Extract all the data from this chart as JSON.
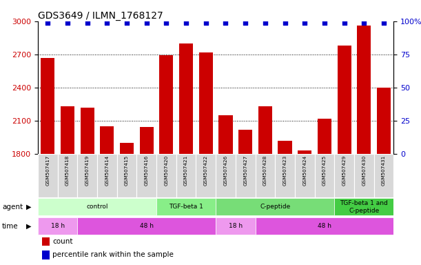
{
  "title": "GDS3649 / ILMN_1768127",
  "samples": [
    "GSM507417",
    "GSM507418",
    "GSM507419",
    "GSM507414",
    "GSM507415",
    "GSM507416",
    "GSM507420",
    "GSM507421",
    "GSM507422",
    "GSM507426",
    "GSM507427",
    "GSM507428",
    "GSM507423",
    "GSM507424",
    "GSM507425",
    "GSM507429",
    "GSM507430",
    "GSM507431"
  ],
  "counts": [
    2670,
    2230,
    2220,
    2050,
    1900,
    2040,
    2690,
    2800,
    2720,
    2150,
    2020,
    2230,
    1920,
    1830,
    2120,
    2780,
    2960,
    2400
  ],
  "percentiles": [
    99,
    99,
    99,
    99,
    99,
    99,
    99,
    99,
    99,
    99,
    99,
    99,
    99,
    99,
    99,
    99,
    99,
    99
  ],
  "bar_color": "#cc0000",
  "dot_color": "#0000cc",
  "ylim_left": [
    1800,
    3000
  ],
  "ylim_right": [
    0,
    100
  ],
  "yticks_left": [
    1800,
    2100,
    2400,
    2700,
    3000
  ],
  "yticks_right": [
    0,
    25,
    50,
    75,
    100
  ],
  "ytick_right_labels": [
    "0",
    "25",
    "50",
    "75",
    "100%"
  ],
  "gridlines": [
    2100,
    2400,
    2700
  ],
  "agent_groups": [
    {
      "label": "control",
      "start": 0,
      "end": 6,
      "color": "#ccffcc"
    },
    {
      "label": "TGF-beta 1",
      "start": 6,
      "end": 9,
      "color": "#88ee88"
    },
    {
      "label": "C-peptide",
      "start": 9,
      "end": 15,
      "color": "#77dd77"
    },
    {
      "label": "TGF-beta 1 and\nC-peptide",
      "start": 15,
      "end": 18,
      "color": "#44cc44"
    }
  ],
  "time_groups": [
    {
      "label": "18 h",
      "start": 0,
      "end": 2,
      "color": "#ee99ee"
    },
    {
      "label": "48 h",
      "start": 2,
      "end": 9,
      "color": "#dd55dd"
    },
    {
      "label": "18 h",
      "start": 9,
      "end": 11,
      "color": "#ee99ee"
    },
    {
      "label": "48 h",
      "start": 11,
      "end": 18,
      "color": "#dd55dd"
    }
  ],
  "agent_label": "agent",
  "time_label": "time",
  "legend_count_label": "count",
  "legend_pct_label": "percentile rank within the sample",
  "background_color": "#ffffff",
  "sample_box_color": "#d8d8d8",
  "sample_box_edge_color": "#ffffff"
}
